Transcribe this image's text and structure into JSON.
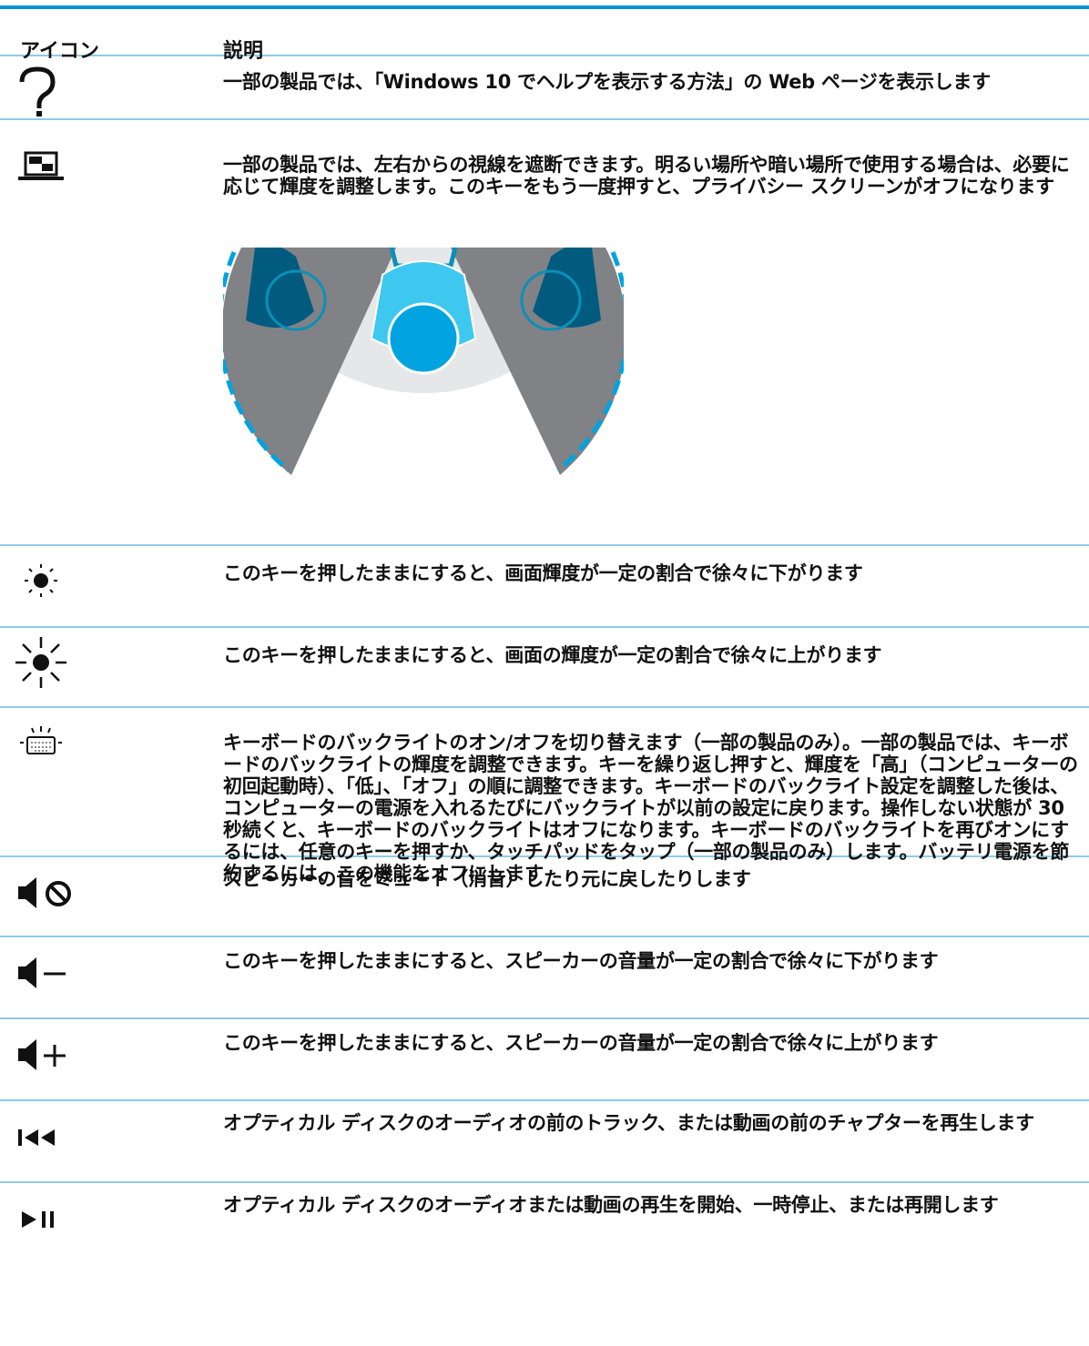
{
  "table": {
    "header": [
      "アイコン",
      "説明"
    ],
    "rows": [
      "一部の製品では、「Windows 10 でヘルプを表示する方法」の Web ページを表示します",
      "一部の製品では、左右からの視線を遮断できます。明るい場所や暗い場所で使用する場合は、必要に応じて輝度を調整します。このキーをもう一度押すと、プライバシー スクリーンがオフになります",
      "このキーを押したままにすると、画面輝度が一定の割合で徐々に下がります",
      "このキーを押したままにすると、画面の輝度が一定の割合で徐々に上がります",
      "キーボードのバックライトのオン/オフを切り替えます（一部の製品のみ）。一部の製品では、キーボードのバックライトの輝度を調整できます。キーを繰り返し押すと、輝度を「高」（コンピューターの初回起動時）、「低」、「オフ」の順に調整できます。キーボードのバックライト設定を調整した後は、コンピューターの電源を入れるたびにバックライトが以前の設定に戻ります。操作しない状態が 30 秒続くと、キーボードのバックライトはオフになります。キーボードのバックライトを再びオンにするには、任意のキーを押すか、タッチパッドをタップ（一部の製品のみ）します。バッテリ電源を節約するには、この機能をオフにします",
      "スピーカーの音をミュート（消音）したり元に戻したりします",
      "このキーを押したままにすると、スピーカーの音量が一定の割合で徐々に下がります",
      "このキーを押したままにすると、スピーカーの音量が一定の割合で徐々に上がります",
      "オプティカル ディスクのオーディオの前のトラック、または動画の前のチャプターを再生します",
      "オプティカル ディスクのオーディオまたは動画の再生を開始、一時停止、または再開します"
    ]
  }
}
